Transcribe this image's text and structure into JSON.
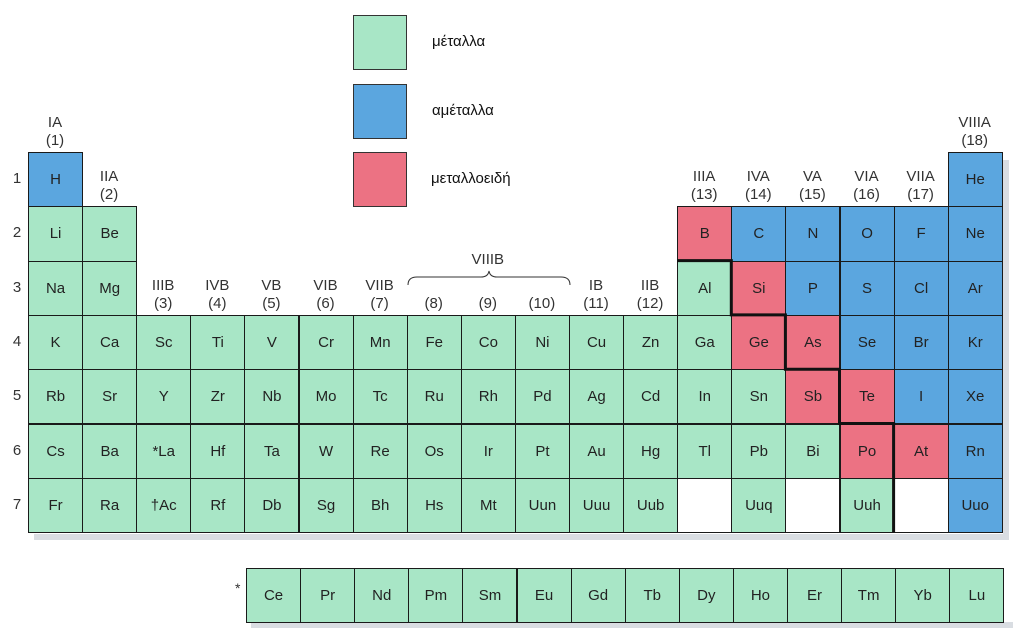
{
  "colors": {
    "metal": "#a8e6c6",
    "nonmetal": "#5ba6df",
    "metalloid": "#ec7283",
    "empty": "#ffffff"
  },
  "legend": [
    {
      "type": "metal",
      "label": "μέταλλα"
    },
    {
      "type": "nonmetal",
      "label": "αμέταλλα"
    },
    {
      "type": "metalloid",
      "label": "μεταλλοειδή"
    }
  ],
  "groups": [
    {
      "col": 1,
      "row": 1,
      "roman": "IA",
      "num": "(1)"
    },
    {
      "col": 2,
      "row": 2,
      "roman": "IIA",
      "num": "(2)"
    },
    {
      "col": 3,
      "row": 4,
      "roman": "IIIB",
      "num": "(3)"
    },
    {
      "col": 4,
      "row": 4,
      "roman": "IVB",
      "num": "(4)"
    },
    {
      "col": 5,
      "row": 4,
      "roman": "VB",
      "num": "(5)"
    },
    {
      "col": 6,
      "row": 4,
      "roman": "VIB",
      "num": "(6)"
    },
    {
      "col": 7,
      "row": 4,
      "roman": "VIIB",
      "num": "(7)"
    },
    {
      "col": 8,
      "row": 4,
      "roman": "",
      "num": "(8)"
    },
    {
      "col": 9,
      "row": 4,
      "roman": "",
      "num": "(9)"
    },
    {
      "col": 10,
      "row": 4,
      "roman": "",
      "num": "(10)"
    },
    {
      "col": 11,
      "row": 4,
      "roman": "IB",
      "num": "(11)"
    },
    {
      "col": 12,
      "row": 4,
      "roman": "IIB",
      "num": "(12)"
    },
    {
      "col": 13,
      "row": 2,
      "roman": "IIIA",
      "num": "(13)"
    },
    {
      "col": 14,
      "row": 2,
      "roman": "IVA",
      "num": "(14)"
    },
    {
      "col": 15,
      "row": 2,
      "roman": "VA",
      "num": "(15)"
    },
    {
      "col": 16,
      "row": 2,
      "roman": "VIA",
      "num": "(16)"
    },
    {
      "col": 17,
      "row": 2,
      "roman": "VIIA",
      "num": "(17)"
    },
    {
      "col": 18,
      "row": 1,
      "roman": "VIIIA",
      "num": "(18)"
    }
  ],
  "viiib_label": "VIIIB",
  "periods": [
    "1",
    "2",
    "3",
    "4",
    "5",
    "6",
    "7"
  ],
  "elements": [
    {
      "s": "H",
      "r": 1,
      "c": 1,
      "t": "nonmetal"
    },
    {
      "s": "He",
      "r": 1,
      "c": 18,
      "t": "nonmetal"
    },
    {
      "s": "Li",
      "r": 2,
      "c": 1,
      "t": "metal"
    },
    {
      "s": "Be",
      "r": 2,
      "c": 2,
      "t": "metal"
    },
    {
      "s": "B",
      "r": 2,
      "c": 13,
      "t": "metalloid"
    },
    {
      "s": "C",
      "r": 2,
      "c": 14,
      "t": "nonmetal"
    },
    {
      "s": "N",
      "r": 2,
      "c": 15,
      "t": "nonmetal"
    },
    {
      "s": "O",
      "r": 2,
      "c": 16,
      "t": "nonmetal"
    },
    {
      "s": "F",
      "r": 2,
      "c": 17,
      "t": "nonmetal"
    },
    {
      "s": "Ne",
      "r": 2,
      "c": 18,
      "t": "nonmetal"
    },
    {
      "s": "Na",
      "r": 3,
      "c": 1,
      "t": "metal"
    },
    {
      "s": "Mg",
      "r": 3,
      "c": 2,
      "t": "metal"
    },
    {
      "s": "Al",
      "r": 3,
      "c": 13,
      "t": "metal"
    },
    {
      "s": "Si",
      "r": 3,
      "c": 14,
      "t": "metalloid"
    },
    {
      "s": "P",
      "r": 3,
      "c": 15,
      "t": "nonmetal"
    },
    {
      "s": "S",
      "r": 3,
      "c": 16,
      "t": "nonmetal"
    },
    {
      "s": "Cl",
      "r": 3,
      "c": 17,
      "t": "nonmetal"
    },
    {
      "s": "Ar",
      "r": 3,
      "c": 18,
      "t": "nonmetal"
    },
    {
      "s": "K",
      "r": 4,
      "c": 1,
      "t": "metal"
    },
    {
      "s": "Ca",
      "r": 4,
      "c": 2,
      "t": "metal"
    },
    {
      "s": "Sc",
      "r": 4,
      "c": 3,
      "t": "metal"
    },
    {
      "s": "Ti",
      "r": 4,
      "c": 4,
      "t": "metal"
    },
    {
      "s": "V",
      "r": 4,
      "c": 5,
      "t": "metal"
    },
    {
      "s": "Cr",
      "r": 4,
      "c": 6,
      "t": "metal"
    },
    {
      "s": "Mn",
      "r": 4,
      "c": 7,
      "t": "metal"
    },
    {
      "s": "Fe",
      "r": 4,
      "c": 8,
      "t": "metal"
    },
    {
      "s": "Co",
      "r": 4,
      "c": 9,
      "t": "metal"
    },
    {
      "s": "Ni",
      "r": 4,
      "c": 10,
      "t": "metal"
    },
    {
      "s": "Cu",
      "r": 4,
      "c": 11,
      "t": "metal"
    },
    {
      "s": "Zn",
      "r": 4,
      "c": 12,
      "t": "metal"
    },
    {
      "s": "Ga",
      "r": 4,
      "c": 13,
      "t": "metal"
    },
    {
      "s": "Ge",
      "r": 4,
      "c": 14,
      "t": "metalloid"
    },
    {
      "s": "As",
      "r": 4,
      "c": 15,
      "t": "metalloid"
    },
    {
      "s": "Se",
      "r": 4,
      "c": 16,
      "t": "nonmetal"
    },
    {
      "s": "Br",
      "r": 4,
      "c": 17,
      "t": "nonmetal"
    },
    {
      "s": "Kr",
      "r": 4,
      "c": 18,
      "t": "nonmetal"
    },
    {
      "s": "Rb",
      "r": 5,
      "c": 1,
      "t": "metal"
    },
    {
      "s": "Sr",
      "r": 5,
      "c": 2,
      "t": "metal"
    },
    {
      "s": "Y",
      "r": 5,
      "c": 3,
      "t": "metal"
    },
    {
      "s": "Zr",
      "r": 5,
      "c": 4,
      "t": "metal"
    },
    {
      "s": "Nb",
      "r": 5,
      "c": 5,
      "t": "metal"
    },
    {
      "s": "Mo",
      "r": 5,
      "c": 6,
      "t": "metal"
    },
    {
      "s": "Tc",
      "r": 5,
      "c": 7,
      "t": "metal"
    },
    {
      "s": "Ru",
      "r": 5,
      "c": 8,
      "t": "metal"
    },
    {
      "s": "Rh",
      "r": 5,
      "c": 9,
      "t": "metal"
    },
    {
      "s": "Pd",
      "r": 5,
      "c": 10,
      "t": "metal"
    },
    {
      "s": "Ag",
      "r": 5,
      "c": 11,
      "t": "metal"
    },
    {
      "s": "Cd",
      "r": 5,
      "c": 12,
      "t": "metal"
    },
    {
      "s": "In",
      "r": 5,
      "c": 13,
      "t": "metal"
    },
    {
      "s": "Sn",
      "r": 5,
      "c": 14,
      "t": "metal"
    },
    {
      "s": "Sb",
      "r": 5,
      "c": 15,
      "t": "metalloid"
    },
    {
      "s": "Te",
      "r": 5,
      "c": 16,
      "t": "metalloid"
    },
    {
      "s": "I",
      "r": 5,
      "c": 17,
      "t": "nonmetal"
    },
    {
      "s": "Xe",
      "r": 5,
      "c": 18,
      "t": "nonmetal"
    },
    {
      "s": "Cs",
      "r": 6,
      "c": 1,
      "t": "metal"
    },
    {
      "s": "Ba",
      "r": 6,
      "c": 2,
      "t": "metal"
    },
    {
      "s": "*La",
      "r": 6,
      "c": 3,
      "t": "metal"
    },
    {
      "s": "Hf",
      "r": 6,
      "c": 4,
      "t": "metal"
    },
    {
      "s": "Ta",
      "r": 6,
      "c": 5,
      "t": "metal"
    },
    {
      "s": "W",
      "r": 6,
      "c": 6,
      "t": "metal"
    },
    {
      "s": "Re",
      "r": 6,
      "c": 7,
      "t": "metal"
    },
    {
      "s": "Os",
      "r": 6,
      "c": 8,
      "t": "metal"
    },
    {
      "s": "Ir",
      "r": 6,
      "c": 9,
      "t": "metal"
    },
    {
      "s": "Pt",
      "r": 6,
      "c": 10,
      "t": "metal"
    },
    {
      "s": "Au",
      "r": 6,
      "c": 11,
      "t": "metal"
    },
    {
      "s": "Hg",
      "r": 6,
      "c": 12,
      "t": "metal"
    },
    {
      "s": "Tl",
      "r": 6,
      "c": 13,
      "t": "metal"
    },
    {
      "s": "Pb",
      "r": 6,
      "c": 14,
      "t": "metal"
    },
    {
      "s": "Bi",
      "r": 6,
      "c": 15,
      "t": "metal"
    },
    {
      "s": "Po",
      "r": 6,
      "c": 16,
      "t": "metalloid"
    },
    {
      "s": "At",
      "r": 6,
      "c": 17,
      "t": "metalloid"
    },
    {
      "s": "Rn",
      "r": 6,
      "c": 18,
      "t": "nonmetal"
    },
    {
      "s": "Fr",
      "r": 7,
      "c": 1,
      "t": "metal"
    },
    {
      "s": "Ra",
      "r": 7,
      "c": 2,
      "t": "metal"
    },
    {
      "s": "†Ac",
      "r": 7,
      "c": 3,
      "t": "metal"
    },
    {
      "s": "Rf",
      "r": 7,
      "c": 4,
      "t": "metal"
    },
    {
      "s": "Db",
      "r": 7,
      "c": 5,
      "t": "metal"
    },
    {
      "s": "Sg",
      "r": 7,
      "c": 6,
      "t": "metal"
    },
    {
      "s": "Bh",
      "r": 7,
      "c": 7,
      "t": "metal"
    },
    {
      "s": "Hs",
      "r": 7,
      "c": 8,
      "t": "metal"
    },
    {
      "s": "Mt",
      "r": 7,
      "c": 9,
      "t": "metal"
    },
    {
      "s": "Uun",
      "r": 7,
      "c": 10,
      "t": "metal"
    },
    {
      "s": "Uuu",
      "r": 7,
      "c": 11,
      "t": "metal"
    },
    {
      "s": "Uub",
      "r": 7,
      "c": 12,
      "t": "metal"
    },
    {
      "s": "",
      "r": 7,
      "c": 13,
      "t": "empty"
    },
    {
      "s": "Uuq",
      "r": 7,
      "c": 14,
      "t": "metal"
    },
    {
      "s": "",
      "r": 7,
      "c": 15,
      "t": "empty"
    },
    {
      "s": "Uuh",
      "r": 7,
      "c": 16,
      "t": "metal"
    },
    {
      "s": "",
      "r": 7,
      "c": 17,
      "t": "empty"
    },
    {
      "s": "Uuo",
      "r": 7,
      "c": 18,
      "t": "nonmetal"
    }
  ],
  "lanthanide_marker": "*",
  "lanthanides": [
    "Ce",
    "Pr",
    "Nd",
    "Pm",
    "Sm",
    "Eu",
    "Gd",
    "Tb",
    "Dy",
    "Ho",
    "Er",
    "Tm",
    "Yb",
    "Lu"
  ]
}
